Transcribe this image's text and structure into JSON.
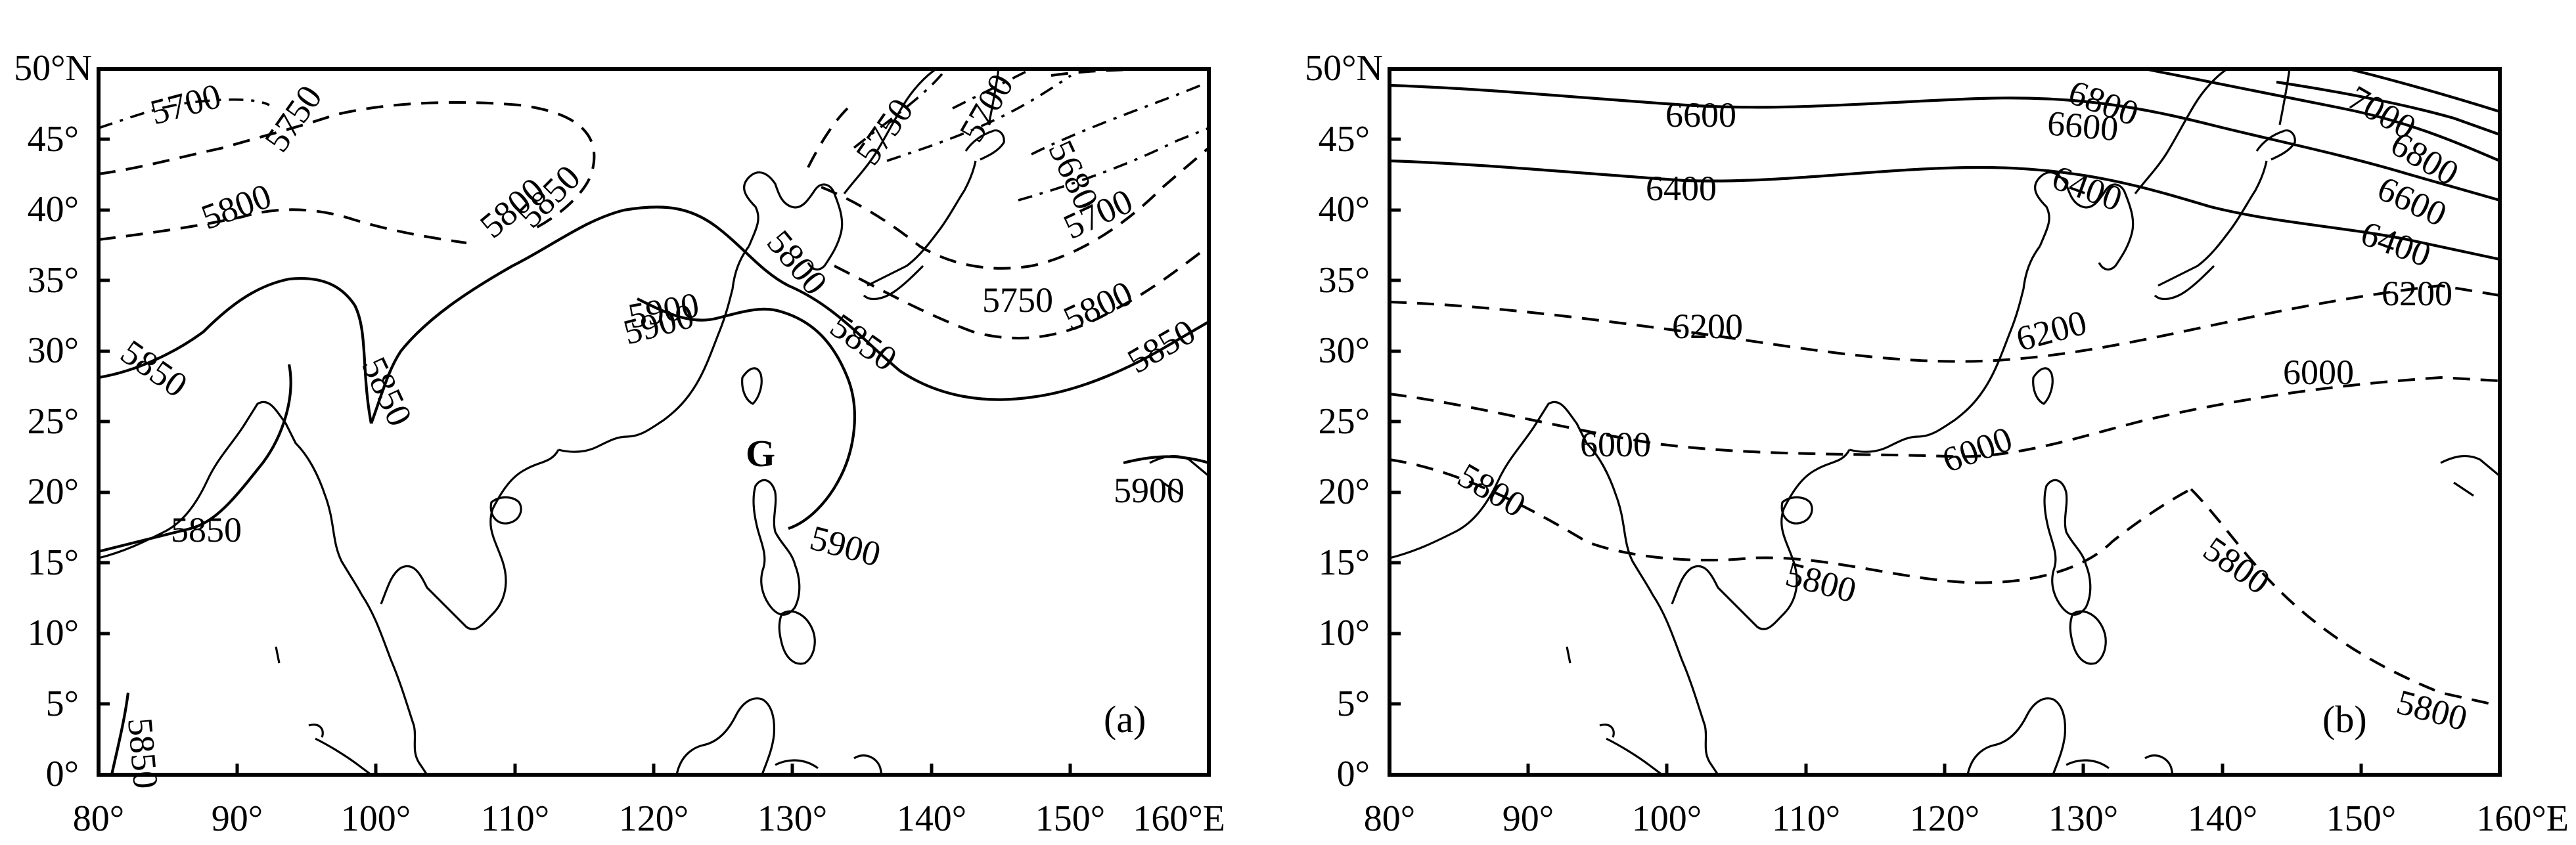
{
  "panels": [
    {
      "id": "a",
      "label": "(a)",
      "x_ticks": [
        "80°",
        "90°",
        "100°",
        "110°",
        "120°",
        "130°",
        "140°",
        "150°",
        "160°E"
      ],
      "y_ticks": [
        "50°N",
        "45°",
        "40°",
        "35°",
        "30°",
        "25°",
        "20°",
        "15°",
        "10°",
        "5°",
        "0°"
      ],
      "marker": "G",
      "contour_labels": [
        "5700",
        "5750",
        "5800",
        "5850",
        "5900",
        "5800",
        "5850",
        "5750",
        "5700",
        "5680",
        "5800",
        "5750",
        "5700",
        "5800",
        "5850",
        "5900",
        "5850",
        "5850",
        "5900",
        "5850"
      ]
    },
    {
      "id": "b",
      "label": "(b)",
      "x_ticks": [
        "80°",
        "90°",
        "100°",
        "110°",
        "120°",
        "130°",
        "140°",
        "150°",
        "160°E"
      ],
      "y_ticks": [
        "50°N",
        "45°",
        "40°",
        "35°",
        "30°",
        "25°",
        "20°",
        "15°",
        "10°",
        "5°",
        "0°"
      ],
      "contour_labels": [
        "6600",
        "6400",
        "6800",
        "6600",
        "6400",
        "7000",
        "6800",
        "6600",
        "6400",
        "6200",
        "6200",
        "6200",
        "6000",
        "6000",
        "6000",
        "5800",
        "5800",
        "5800",
        "5800"
      ]
    }
  ],
  "map_extent": {
    "lon": [
      80,
      160
    ],
    "lat": [
      0,
      50
    ]
  }
}
